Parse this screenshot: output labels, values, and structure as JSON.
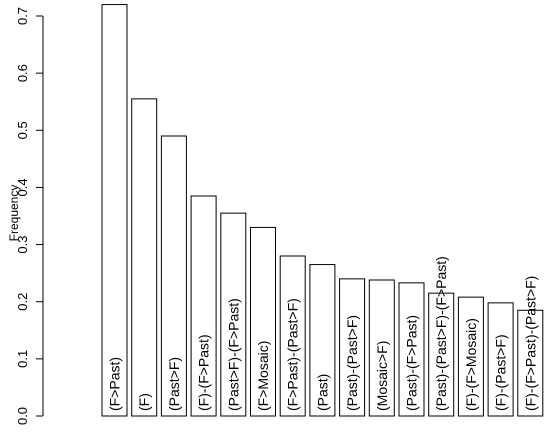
{
  "chart_data": {
    "type": "bar",
    "title": "",
    "xlabel": "",
    "ylabel": "Frequency",
    "ylim": [
      0,
      0.72
    ],
    "yticks": [
      "0.0",
      "0.1",
      "0.2",
      "0.3",
      "0.4",
      "0.5",
      "0.6",
      "0.7"
    ],
    "grid": false,
    "categories": [
      "(F>Past)",
      "(F)",
      "(Past>F)",
      "(F)-(F>Past)",
      "(Past>F)-(F>Past)",
      "(F>Mosaic)",
      "(F>Past)-(Past>F)",
      "(Past)",
      "(Past)-(Past>F)",
      "(Mosaic>F)",
      "(Past)-(F>Past)",
      "(Past)-(Past>F)-(F>Past)",
      "(F)-(F>Mosaic)",
      "(F)-(Past>F)",
      "(F)-(F>Past)-(Past>F)"
    ],
    "values": [
      0.72,
      0.555,
      0.49,
      0.385,
      0.355,
      0.33,
      0.28,
      0.265,
      0.24,
      0.238,
      0.233,
      0.215,
      0.208,
      0.198,
      0.185
    ]
  }
}
